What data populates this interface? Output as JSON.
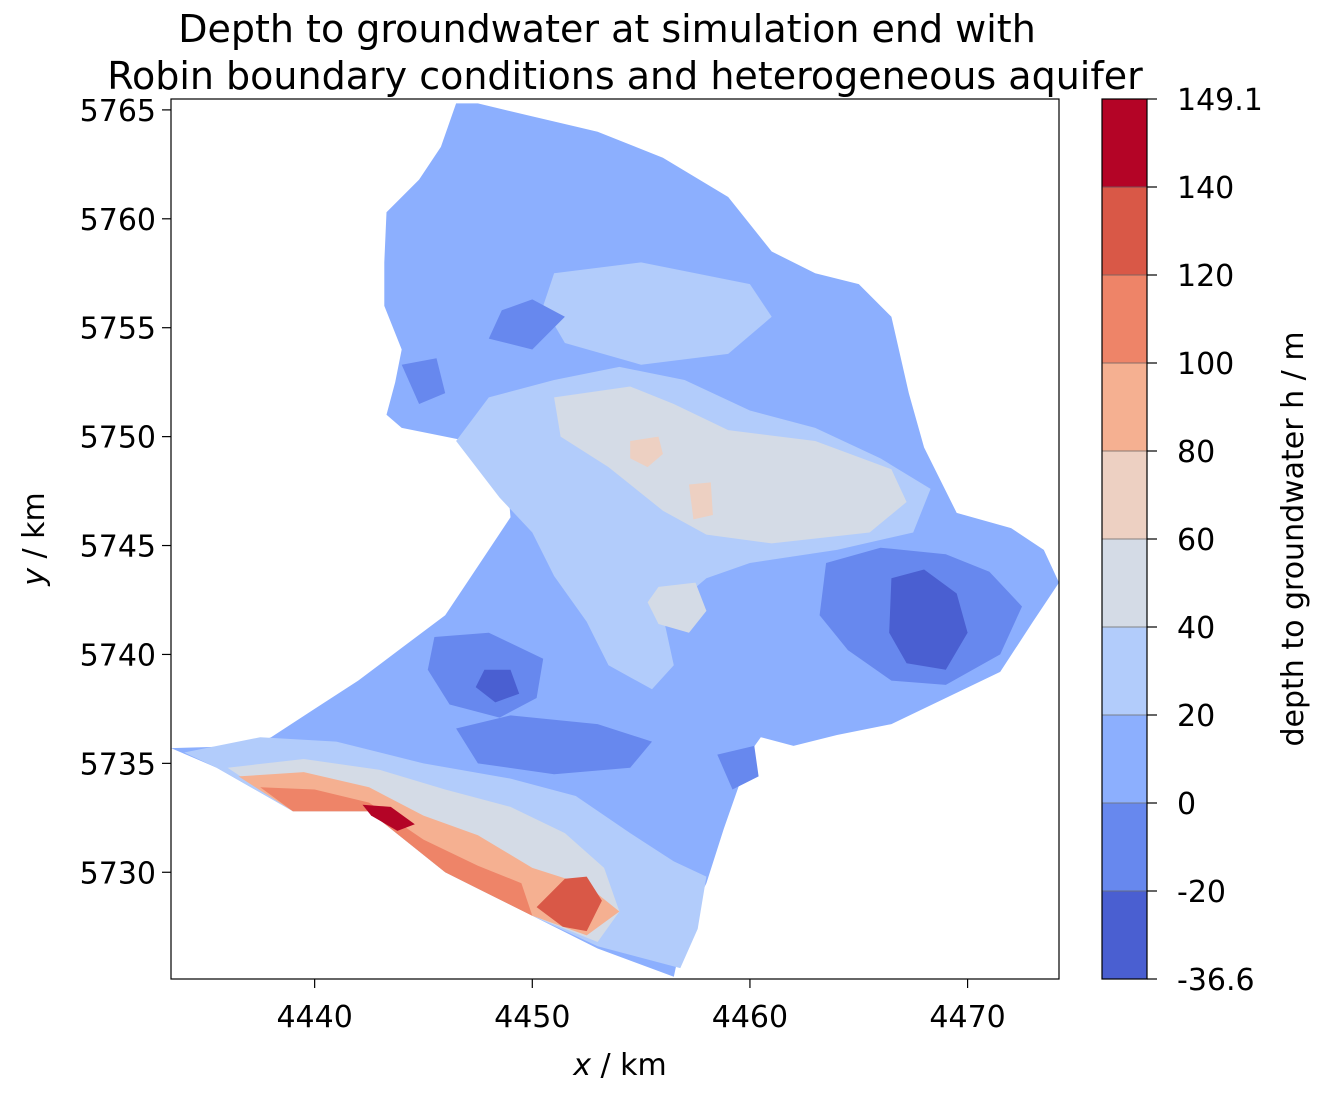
{
  "chart_data": {
    "type": "heatmap",
    "title_lines": [
      "Depth to groundwater at simulation end with",
      "Robin boundary conditions and heterogeneous aquifer"
    ],
    "xlabel": {
      "var": "x",
      "unit": " / km"
    },
    "ylabel": {
      "var": "y",
      "unit": " / km"
    },
    "xlim": [
      4433.4,
      4474.2
    ],
    "ylim": [
      5725.1,
      5765.5
    ],
    "xticks": [
      4440,
      4450,
      4460,
      4470
    ],
    "yticks": [
      5730,
      5735,
      5740,
      5745,
      5750,
      5755,
      5760,
      5765
    ],
    "colorbar": {
      "label": "depth to groundwater h / m",
      "levels": [
        -36.6,
        -20,
        0,
        20,
        40,
        60,
        80,
        100,
        120,
        140,
        149.1
      ],
      "level_labels": [
        "-36.6",
        "-20",
        "0",
        "20",
        "40",
        "60",
        "80",
        "100",
        "120",
        "140",
        "149.1"
      ],
      "colors": [
        "#4a5fd1",
        "#6788ee",
        "#8caffe",
        "#b2ccfb",
        "#d4dbe6",
        "#edd0c2",
        "#f5b091",
        "#ee8468",
        "#d95847",
        "#b40426"
      ]
    },
    "regions": [
      {
        "name": "domain-outline",
        "level": 0,
        "points": [
          [
            4433.4,
            5735.7
          ],
          [
            4437,
            5735.8
          ],
          [
            4438,
            5736.2
          ],
          [
            4440,
            5737.5
          ],
          [
            4442,
            5738.8
          ],
          [
            4444,
            5740.3
          ],
          [
            4446,
            5741.8
          ],
          [
            4447,
            5743.3
          ],
          [
            4448,
            5744.8
          ],
          [
            4449,
            5746.3
          ],
          [
            4448.8,
            5748.5
          ],
          [
            4447.5,
            5749.7
          ],
          [
            4446,
            5750
          ],
          [
            4444,
            5750.4
          ],
          [
            4443.3,
            5751
          ],
          [
            4443.7,
            5752.5
          ],
          [
            4444,
            5754
          ],
          [
            4443.2,
            5756
          ],
          [
            4443.2,
            5758
          ],
          [
            4443.3,
            5760.3
          ],
          [
            4444.8,
            5761.8
          ],
          [
            4445.8,
            5763.3
          ],
          [
            4446.5,
            5765.3
          ],
          [
            4447.5,
            5765.3
          ],
          [
            4450,
            5764.7
          ],
          [
            4453,
            5764
          ],
          [
            4456,
            5762.8
          ],
          [
            4459,
            5761
          ],
          [
            4461,
            5758.5
          ],
          [
            4463,
            5757.5
          ],
          [
            4465,
            5757
          ],
          [
            4466.5,
            5755.5
          ],
          [
            4467.3,
            5752
          ],
          [
            4468,
            5749.5
          ],
          [
            4469.5,
            5746.5
          ],
          [
            4472,
            5745.8
          ],
          [
            4473.5,
            5744.8
          ],
          [
            4474.2,
            5743.3
          ],
          [
            4473,
            5741.5
          ],
          [
            4471.5,
            5739.2
          ],
          [
            4469,
            5738
          ],
          [
            4466.5,
            5736.8
          ],
          [
            4464,
            5736.3
          ],
          [
            4462,
            5735.8
          ],
          [
            4460.5,
            5736.2
          ],
          [
            4460,
            5735.5
          ],
          [
            4459.5,
            5734
          ],
          [
            4458.8,
            5732
          ],
          [
            4458,
            5729.5
          ],
          [
            4457,
            5727.5
          ],
          [
            4456.5,
            5725.2
          ],
          [
            4453,
            5726.5
          ],
          [
            4450,
            5728
          ],
          [
            4446,
            5730
          ],
          [
            4442.5,
            5732.8
          ],
          [
            4439,
            5732.8
          ],
          [
            4435.5,
            5734.8
          ]
        ]
      },
      {
        "name": "central-band",
        "level": 1,
        "points": [
          [
            4446.5,
            5749.8
          ],
          [
            4448,
            5751.8
          ],
          [
            4451,
            5752.6
          ],
          [
            4454,
            5753.2
          ],
          [
            4457,
            5752.6
          ],
          [
            4460,
            5751.2
          ],
          [
            4463,
            5750.4
          ],
          [
            4466,
            5749
          ],
          [
            4468.3,
            5747.6
          ],
          [
            4467.5,
            5745.6
          ],
          [
            4464,
            5744.8
          ],
          [
            4460,
            5744.2
          ],
          [
            4458,
            5743.5
          ],
          [
            4456,
            5741.8
          ],
          [
            4456.5,
            5739.5
          ],
          [
            4455.5,
            5738.4
          ],
          [
            4453.5,
            5739.5
          ],
          [
            4452.5,
            5741.5
          ],
          [
            4451,
            5743.6
          ],
          [
            4450,
            5745.6
          ],
          [
            4448.5,
            5747.2
          ]
        ]
      },
      {
        "name": "north-upland",
        "level": 1,
        "points": [
          [
            4451,
            5757.5
          ],
          [
            4455,
            5758
          ],
          [
            4460,
            5757
          ],
          [
            4461,
            5755.5
          ],
          [
            4459,
            5753.8
          ],
          [
            4455,
            5753.3
          ],
          [
            4451.5,
            5754.3
          ],
          [
            4450.5,
            5756
          ]
        ]
      },
      {
        "name": "central-ridge",
        "level": 2,
        "points": [
          [
            4451,
            5751.8
          ],
          [
            4454.5,
            5752.3
          ],
          [
            4456.5,
            5751.5
          ],
          [
            4459,
            5750.3
          ],
          [
            4463,
            5749.8
          ],
          [
            4466.5,
            5748.5
          ],
          [
            4467.2,
            5747
          ],
          [
            4465.5,
            5745.6
          ],
          [
            4461,
            5745.1
          ],
          [
            4458,
            5745.5
          ],
          [
            4456,
            5746.6
          ],
          [
            4453.5,
            5748.6
          ],
          [
            4451.3,
            5750
          ]
        ]
      },
      {
        "name": "central-peak",
        "level": 3,
        "points": [
          [
            4454.5,
            5749.8
          ],
          [
            4455.8,
            5750
          ],
          [
            4456,
            5749.2
          ],
          [
            4455.3,
            5748.6
          ],
          [
            4454.5,
            5749
          ]
        ]
      },
      {
        "name": "central-peak-2",
        "level": 3,
        "points": [
          [
            4457.2,
            5747.8
          ],
          [
            4458.2,
            5747.9
          ],
          [
            4458.3,
            5746.4
          ],
          [
            4457.4,
            5746.2
          ]
        ]
      },
      {
        "name": "knoll",
        "level": 2,
        "points": [
          [
            4455.8,
            5743.1
          ],
          [
            4457.5,
            5743.3
          ],
          [
            4458,
            5742
          ],
          [
            4457.2,
            5741
          ],
          [
            4455.8,
            5741.4
          ],
          [
            4455.3,
            5742.4
          ]
        ]
      },
      {
        "name": "south-belt",
        "level": 1,
        "points": [
          [
            4434,
            5735.5
          ],
          [
            4437.5,
            5736.2
          ],
          [
            4441,
            5736
          ],
          [
            4445,
            5735
          ],
          [
            4449,
            5734.3
          ],
          [
            4452,
            5733.5
          ],
          [
            4454.5,
            5731.8
          ],
          [
            4456.5,
            5730.5
          ],
          [
            4458,
            5729.8
          ],
          [
            4457.6,
            5727.4
          ],
          [
            4456.8,
            5725.6
          ],
          [
            4453,
            5726.6
          ],
          [
            4450,
            5728
          ],
          [
            4446,
            5730
          ],
          [
            4442.5,
            5732.8
          ],
          [
            4439,
            5732.8
          ],
          [
            4435.5,
            5734.8
          ]
        ]
      },
      {
        "name": "south-mid",
        "level": 2,
        "points": [
          [
            4436,
            5734.8
          ],
          [
            4439.5,
            5735.2
          ],
          [
            4443,
            5734.7
          ],
          [
            4446,
            5733.8
          ],
          [
            4449,
            5733
          ],
          [
            4451.5,
            5731.8
          ],
          [
            4453.3,
            5730.2
          ],
          [
            4454,
            5728.2
          ],
          [
            4453,
            5726.8
          ],
          [
            4450,
            5728
          ],
          [
            4446,
            5730
          ],
          [
            4442.5,
            5732.8
          ],
          [
            4439,
            5732.8
          ]
        ]
      },
      {
        "name": "south-warm",
        "level": 4,
        "points": [
          [
            4436.5,
            5734.4
          ],
          [
            4439.5,
            5734.6
          ],
          [
            4442.5,
            5733.9
          ],
          [
            4445,
            5732.6
          ],
          [
            4447.5,
            5731.7
          ],
          [
            4450,
            5730.2
          ],
          [
            4452.5,
            5729.4
          ],
          [
            4454,
            5728.2
          ],
          [
            4452.5,
            5727.1
          ],
          [
            4450,
            5728
          ],
          [
            4446,
            5730
          ],
          [
            4442.5,
            5732.8
          ],
          [
            4439,
            5732.8
          ]
        ]
      },
      {
        "name": "south-hot",
        "level": 5,
        "points": [
          [
            4437.5,
            5733.9
          ],
          [
            4440,
            5733.8
          ],
          [
            4442.5,
            5733.2
          ],
          [
            4445,
            5731.5
          ],
          [
            4447.5,
            5730.3
          ],
          [
            4449.5,
            5729.5
          ],
          [
            4450,
            5728
          ],
          [
            4446,
            5730
          ],
          [
            4442.5,
            5732.8
          ],
          [
            4439,
            5732.8
          ]
        ]
      },
      {
        "name": "southeast-hot",
        "level": 6,
        "points": [
          [
            4450.2,
            5728.4
          ],
          [
            4451.5,
            5729.7
          ],
          [
            4452.5,
            5729.8
          ],
          [
            4453.2,
            5728.7
          ],
          [
            4452.5,
            5727.3
          ],
          [
            4451.4,
            5727.5
          ]
        ]
      },
      {
        "name": "southwest-max",
        "level": 8,
        "points": [
          [
            4442.2,
            5733.1
          ],
          [
            4443.5,
            5733
          ],
          [
            4444.6,
            5732.2
          ],
          [
            4443.8,
            5731.9
          ],
          [
            4442.6,
            5732.6
          ]
        ]
      },
      {
        "name": "east-basin",
        "level": -1,
        "points": [
          [
            4463.5,
            5744.2
          ],
          [
            4466,
            5744.9
          ],
          [
            4469,
            5744.6
          ],
          [
            4471,
            5743.8
          ],
          [
            4472.5,
            5742.2
          ],
          [
            4471.5,
            5740
          ],
          [
            4469,
            5738.6
          ],
          [
            4466.5,
            5738.8
          ],
          [
            4464.5,
            5740.2
          ],
          [
            4463.2,
            5741.8
          ]
        ]
      },
      {
        "name": "east-deep",
        "level": -2,
        "points": [
          [
            4466.5,
            5743.5
          ],
          [
            4468,
            5743.9
          ],
          [
            4469.5,
            5742.8
          ],
          [
            4470,
            5741
          ],
          [
            4469,
            5739.3
          ],
          [
            4467.2,
            5739.6
          ],
          [
            4466.4,
            5741
          ]
        ]
      },
      {
        "name": "west-basin",
        "level": -1,
        "points": [
          [
            4445.5,
            5740.8
          ],
          [
            4448,
            5741
          ],
          [
            4450.5,
            5739.8
          ],
          [
            4450.2,
            5738
          ],
          [
            4448.5,
            5737.1
          ],
          [
            4446.2,
            5737.7
          ],
          [
            4445.2,
            5739.3
          ]
        ]
      },
      {
        "name": "west-deep",
        "level": -2,
        "points": [
          [
            4447.8,
            5739.3
          ],
          [
            4449,
            5739.3
          ],
          [
            4449.4,
            5738.2
          ],
          [
            4448.3,
            5737.8
          ],
          [
            4447.4,
            5738.5
          ]
        ]
      },
      {
        "name": "south-central-basin",
        "level": -1,
        "points": [
          [
            4446.5,
            5736.6
          ],
          [
            4449,
            5737.2
          ],
          [
            4453,
            5736.8
          ],
          [
            4455.5,
            5736
          ],
          [
            4454.5,
            5734.8
          ],
          [
            4451,
            5734.5
          ],
          [
            4447.5,
            5735
          ]
        ]
      },
      {
        "name": "southeast-basin",
        "level": -1,
        "points": [
          [
            4458.5,
            5735.4
          ],
          [
            4460.2,
            5735.8
          ],
          [
            4460.4,
            5734.4
          ],
          [
            4459.2,
            5733.8
          ]
        ]
      },
      {
        "name": "north-lowland",
        "level": -1,
        "points": [
          [
            4450,
            5756.3
          ],
          [
            4451.5,
            5755.5
          ],
          [
            4450,
            5754
          ],
          [
            4448,
            5754.5
          ],
          [
            4448.6,
            5755.8
          ]
        ]
      },
      {
        "name": "northwest-lowland",
        "level": -1,
        "points": [
          [
            4444,
            5753.3
          ],
          [
            4445.6,
            5753.6
          ],
          [
            4446,
            5752
          ],
          [
            4444.8,
            5751.5
          ]
        ]
      }
    ]
  }
}
